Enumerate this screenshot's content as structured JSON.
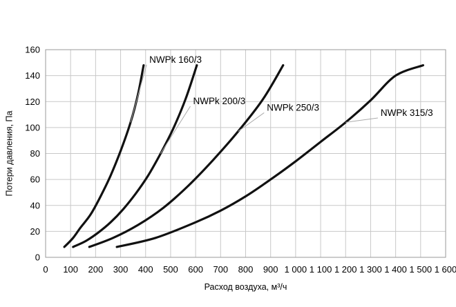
{
  "chart_data": {
    "type": "line",
    "title": "",
    "xlabel": "Расход воздуха, м³/ч",
    "ylabel": "Потери давления, Па",
    "xlim": [
      0,
      1600
    ],
    "ylim": [
      0,
      160
    ],
    "x_ticks": [
      0,
      100,
      200,
      300,
      400,
      500,
      600,
      700,
      800,
      900,
      1000,
      1100,
      1200,
      1300,
      1400,
      1500,
      1600
    ],
    "x_tick_labels": [
      "0",
      "100",
      "200",
      "300",
      "400",
      "500",
      "600",
      "700",
      "800",
      "900",
      "1 000",
      "1 100",
      "1 200",
      "1 300",
      "1 400",
      "1 500",
      "1 600"
    ],
    "y_ticks": [
      0,
      20,
      40,
      60,
      80,
      100,
      120,
      140,
      160
    ],
    "y_tick_labels": [
      "0",
      "20",
      "40",
      "60",
      "80",
      "100",
      "120",
      "140",
      "160"
    ],
    "grid": true,
    "series": [
      {
        "name": "NWPk 160/3",
        "x": [
          75,
          110,
          140,
          180,
          220,
          260,
          300,
          340,
          370,
          392
        ],
        "y": [
          8,
          15,
          23,
          33,
          47,
          63,
          82,
          104,
          126,
          148
        ],
        "label_at": [
          415,
          150
        ]
      },
      {
        "name": "NWPk 200/3",
        "x": [
          110,
          160,
          210,
          260,
          310,
          360,
          410,
          460,
          510,
          560,
          605
        ],
        "y": [
          8,
          12.5,
          19,
          27,
          37,
          49,
          63,
          80,
          99,
          122,
          148
        ],
        "label_at": [
          590,
          118
        ]
      },
      {
        "name": "NWPk 250/3",
        "x": [
          175,
          270,
          370,
          470,
          570,
          670,
          770,
          870,
          950
        ],
        "y": [
          8,
          15,
          25,
          38,
          55,
          75,
          97,
          122,
          148
        ],
        "label_at": [
          885,
          113
        ]
      },
      {
        "name": "NWPk 315/3",
        "x": [
          285,
          440,
          600,
          700,
          800,
          900,
          1000,
          1100,
          1200,
          1300,
          1400,
          1510
        ],
        "y": [
          8,
          15,
          27,
          36,
          47,
          60,
          74,
          89,
          104,
          121,
          140,
          148
        ],
        "label_at": [
          1340,
          109
        ]
      }
    ]
  }
}
